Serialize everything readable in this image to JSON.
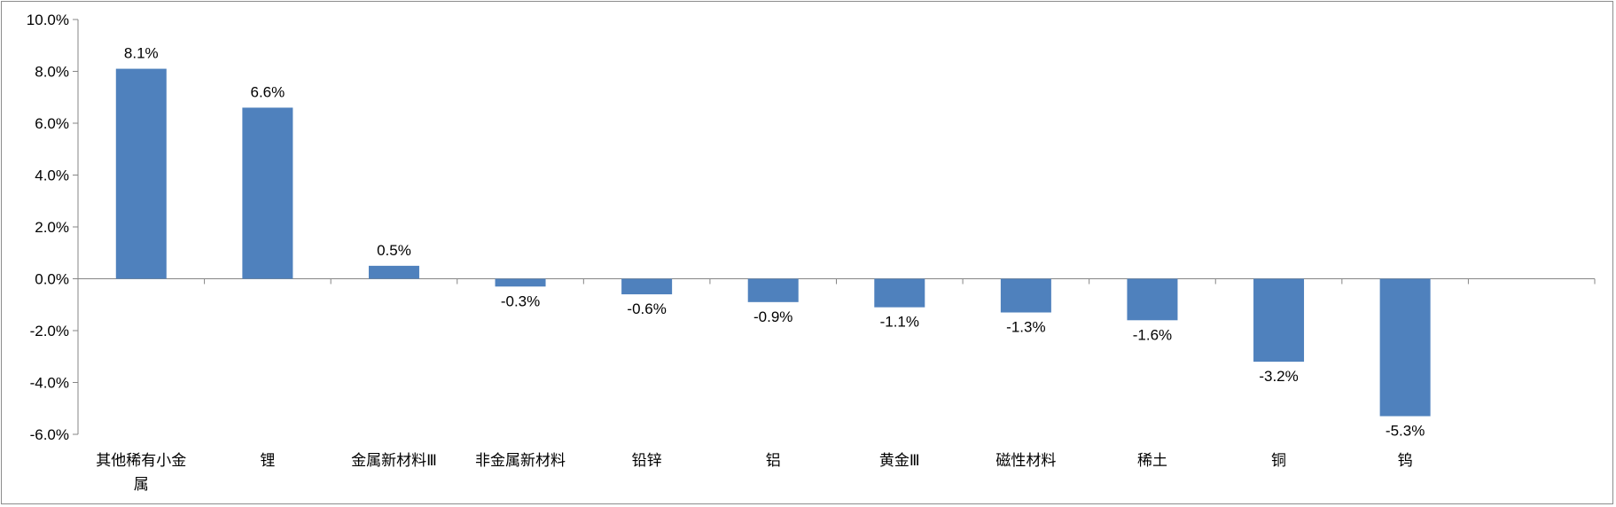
{
  "chart_data": {
    "type": "bar",
    "categories": [
      "其他稀有小金属",
      "锂",
      "金属新材料Ⅲ",
      "非金属新材料",
      "铅锌",
      "铝",
      "黄金Ⅲ",
      "磁性材料",
      "稀土",
      "铜",
      "钨",
      ""
    ],
    "category_lines": [
      [
        "其他稀有小金",
        "属"
      ],
      [
        "锂"
      ],
      [
        "金属新材料Ⅲ"
      ],
      [
        "非金属新材料"
      ],
      [
        "铅锌"
      ],
      [
        "铝"
      ],
      [
        "黄金Ⅲ"
      ],
      [
        "磁性材料"
      ],
      [
        "稀土"
      ],
      [
        "铜"
      ],
      [
        "钨"
      ],
      [
        ""
      ]
    ],
    "values": [
      8.1,
      6.6,
      0.5,
      -0.3,
      -0.6,
      -0.9,
      -1.1,
      -1.3,
      -1.6,
      -3.2,
      -5.3,
      null
    ],
    "data_labels": [
      "8.1%",
      "6.6%",
      "0.5%",
      "-0.3%",
      "-0.6%",
      "-0.9%",
      "-1.1%",
      "-1.3%",
      "-1.6%",
      "-3.2%",
      "-5.3%",
      ""
    ],
    "title": "",
    "xlabel": "",
    "ylabel": "",
    "ylim": [
      -6.0,
      10.0
    ],
    "yticks": [
      10.0,
      8.0,
      6.0,
      4.0,
      2.0,
      0.0,
      -2.0,
      -4.0,
      -6.0
    ],
    "ytick_labels": [
      "10.0%",
      "8.0%",
      "6.0%",
      "4.0%",
      "2.0%",
      "0.0%",
      "-2.0%",
      "-4.0%",
      "-6.0%"
    ],
    "grid": false,
    "legend": "none",
    "bar_color": "#4f81bd",
    "axis_color": "#868686"
  }
}
